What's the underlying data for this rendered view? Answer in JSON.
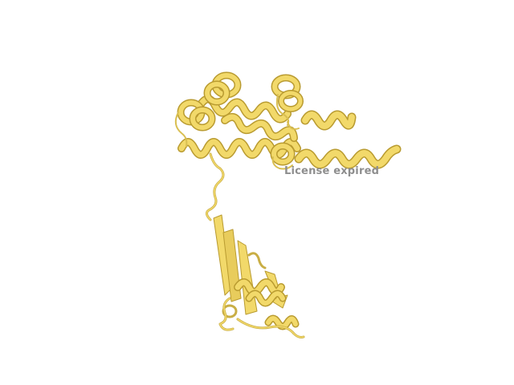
{
  "viewer": {
    "watermark_text": "License expired",
    "background_color": "#ffffff",
    "ribbon_color": "#f2d96a",
    "ribbon_shadow_color": "#b99b30",
    "ribbon_highlight_color": "#fbee9e",
    "watermark_color": "#8e8e8e"
  },
  "structure": {
    "representation": "cartoon",
    "icon": "protein-ribbon-icon"
  }
}
